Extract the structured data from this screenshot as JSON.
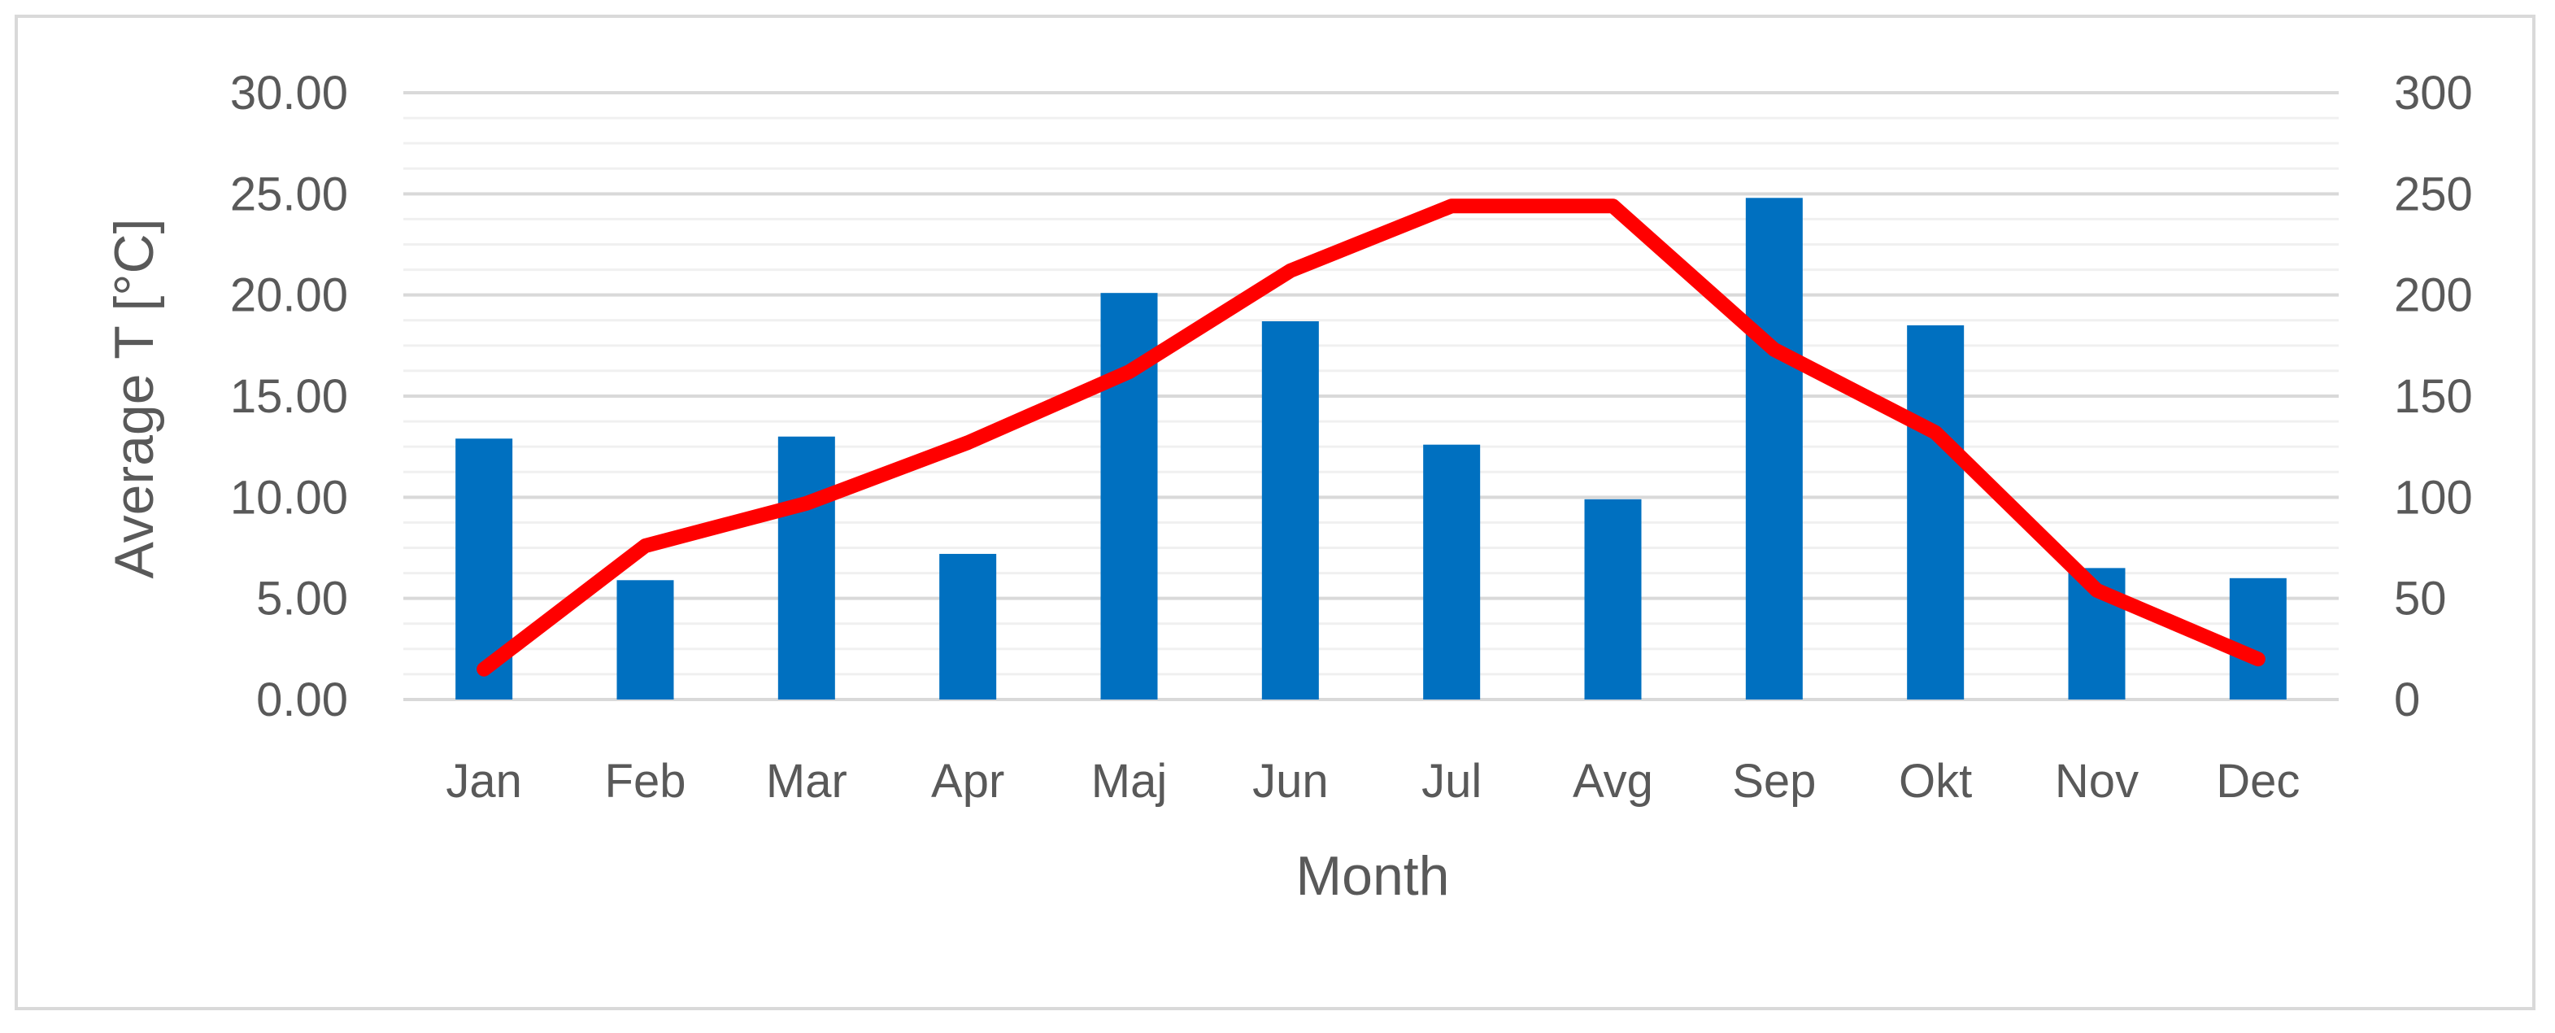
{
  "chart_data": {
    "type": "bar",
    "combo": "bar+line (secondary axis)",
    "title": "",
    "xlabel": "Month",
    "ylabel": "Average T [°C]",
    "y2label": "",
    "categories": [
      "Jan",
      "Feb",
      "Mar",
      "Apr",
      "Maj",
      "Jun",
      "Jul",
      "Avg",
      "Sep",
      "Okt",
      "Nov",
      "Dec"
    ],
    "ylim": [
      0,
      30
    ],
    "y2lim": [
      0,
      300
    ],
    "yticks": [
      "0.00",
      "5.00",
      "10.00",
      "15.00",
      "20.00",
      "25.00",
      "30.00"
    ],
    "y2ticks": [
      "0",
      "50",
      "100",
      "150",
      "200",
      "250",
      "300"
    ],
    "grid": "on",
    "legend": "none",
    "series": [
      {
        "type": "bar",
        "axis": "secondary",
        "color": "#0070c0",
        "values": [
          129,
          59,
          130,
          72,
          201,
          187,
          126,
          99,
          248,
          185,
          65,
          60
        ]
      },
      {
        "type": "line",
        "axis": "primary",
        "color": "#ff0000",
        "values": [
          1.5,
          7.6,
          9.7,
          12.7,
          16.2,
          21.2,
          24.4,
          24.4,
          17.3,
          13.2,
          5.4,
          2.0
        ]
      }
    ]
  }
}
